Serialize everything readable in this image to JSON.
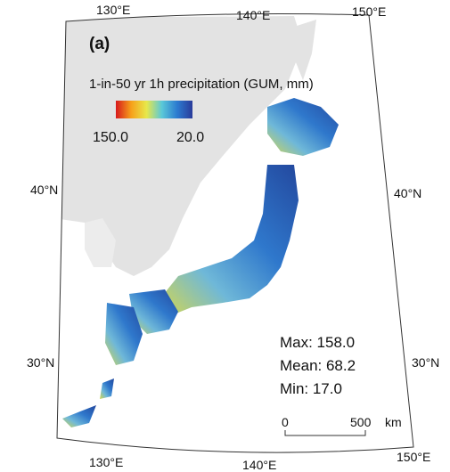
{
  "panel_label": "(a)",
  "lon_labels_top": [
    "130°E",
    "140°E",
    "150°E"
  ],
  "lon_labels_bottom": [
    "130°E",
    "140°E",
    "150°E"
  ],
  "lat_labels_left": [
    "40°N",
    "30°N"
  ],
  "lat_labels_right": [
    "40°N",
    "30°N"
  ],
  "legend": {
    "title": "1-in-50 yr 1h precipitation (GUM, mm)",
    "min_label": "150.0",
    "max_label": "20.0"
  },
  "stats": [
    "Max: 158.0",
    "Mean: 68.2",
    "Min: 17.0"
  ],
  "scale_bar": {
    "labels": [
      "0",
      "500"
    ],
    "unit": "km"
  }
}
